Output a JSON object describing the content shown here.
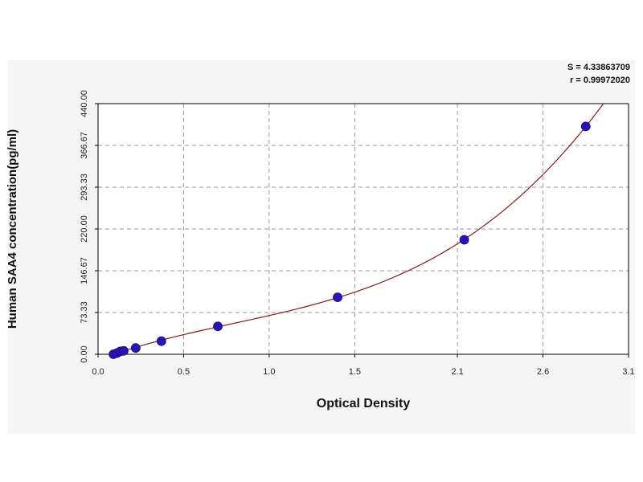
{
  "chart_data": {
    "type": "scatter",
    "title": "",
    "xlabel": "Optical Density",
    "ylabel": "Human SAA4 concentration(pg/ml)",
    "xlim": [
      0.0,
      3.1
    ],
    "ylim": [
      0.0,
      440.0
    ],
    "x_ticks": [
      {
        "value": 0.0,
        "label": "0.0"
      },
      {
        "value": 0.5,
        "label": "0.5"
      },
      {
        "value": 1.0,
        "label": "1.0"
      },
      {
        "value": 1.5,
        "label": "1.5"
      },
      {
        "value": 2.1,
        "label": "2.1"
      },
      {
        "value": 2.6,
        "label": "2.6"
      },
      {
        "value": 3.1,
        "label": "3.1"
      }
    ],
    "y_ticks": [
      {
        "value": 0.0,
        "label": "0.00"
      },
      {
        "value": 73.33,
        "label": "73.33"
      },
      {
        "value": 146.67,
        "label": "146.67"
      },
      {
        "value": 220.0,
        "label": "220.00"
      },
      {
        "value": 293.33,
        "label": "293.33"
      },
      {
        "value": 366.67,
        "label": "366.67"
      },
      {
        "value": 440.0,
        "label": "440.00"
      }
    ],
    "grid": true,
    "series": [
      {
        "points": [
          {
            "x": 0.09,
            "y": 0.0
          },
          {
            "x": 0.11,
            "y": 2.0
          },
          {
            "x": 0.13,
            "y": 5.0
          },
          {
            "x": 0.15,
            "y": 6.0
          },
          {
            "x": 0.22,
            "y": 11.0
          },
          {
            "x": 0.37,
            "y": 23.0
          },
          {
            "x": 0.7,
            "y": 49.0
          },
          {
            "x": 1.4,
            "y": 100.0
          },
          {
            "x": 2.14,
            "y": 201.0
          },
          {
            "x": 2.85,
            "y": 400.0
          }
        ],
        "point_color": "#2a14b4",
        "curve_color": "#8b1a1a",
        "curve_x_range": [
          0.09,
          2.96
        ]
      }
    ],
    "stats": {
      "s_text": "S = 4.33863709",
      "r_text": "r = 0.99972020"
    }
  }
}
